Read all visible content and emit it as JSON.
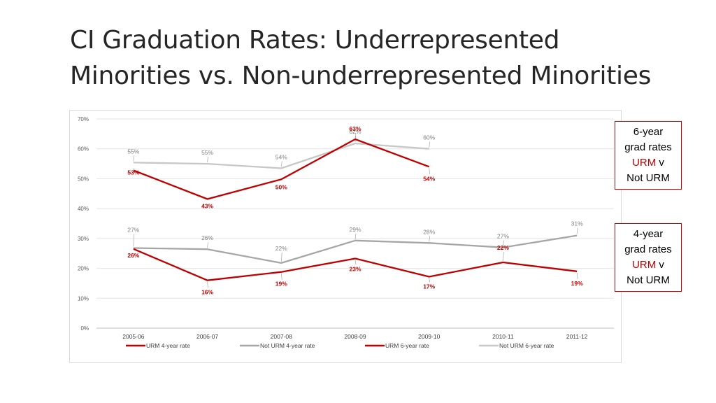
{
  "slide": {
    "title_line1": "CI Graduation Rates: Underrepresented",
    "title_line2": "Minorities vs. Non-underrepresented Minorities"
  },
  "callouts": [
    {
      "line1": "6-year",
      "line2": "grad rates",
      "urm": "URM",
      "v": "v",
      "line4": "Not URM"
    },
    {
      "line1": "4-year",
      "line2": "grad rates",
      "urm": "URM",
      "v": "v",
      "line4": "Not URM"
    }
  ],
  "colors": {
    "urm": "#c00000",
    "not_urm_4": "#a6a6a6",
    "not_urm_6": "#c8c8c8",
    "grid": "#e4e4e4",
    "tick_text": "#595959"
  },
  "chart_data": {
    "type": "line",
    "categories": [
      "2005-06",
      "2006-07",
      "2007-08",
      "2008-09",
      "2009-10",
      "2010-11",
      "2011-12"
    ],
    "ylim": [
      0,
      70
    ],
    "yticks": [
      "0%",
      "10%",
      "20%",
      "30%",
      "40%",
      "50%",
      "60%",
      "70%"
    ],
    "grid": true,
    "legend_position": "bottom",
    "series": [
      {
        "name": "URM 4-year rate",
        "key": "urm4",
        "values": [
          26.5,
          16,
          18.8,
          23.3,
          17.2,
          22,
          19
        ],
        "labels": [
          "26%",
          "16%",
          "19%",
          "23%",
          "17%",
          "22%",
          "19%"
        ]
      },
      {
        "name": "Not URM 4-year rate",
        "key": "not4",
        "values": [
          26.8,
          26.4,
          21.8,
          29.3,
          28.5,
          27,
          31
        ],
        "labels": [
          "27%",
          "26%",
          "22%",
          "29%",
          "28%",
          "27%",
          "31%"
        ]
      },
      {
        "name": "URM 6-year rate",
        "key": "urm6",
        "values": [
          52.8,
          43.2,
          49.8,
          63.2,
          54,
          null,
          null
        ],
        "labels": [
          "53%",
          "43%",
          "50%",
          "63%",
          "54%",
          "",
          ""
        ]
      },
      {
        "name": "Not URM 6-year rate",
        "key": "not6",
        "values": [
          55.4,
          55,
          53.5,
          61.8,
          60,
          null,
          null
        ],
        "labels": [
          "55%",
          "55%",
          "54%",
          "62%",
          "60%",
          "",
          ""
        ]
      }
    ]
  }
}
